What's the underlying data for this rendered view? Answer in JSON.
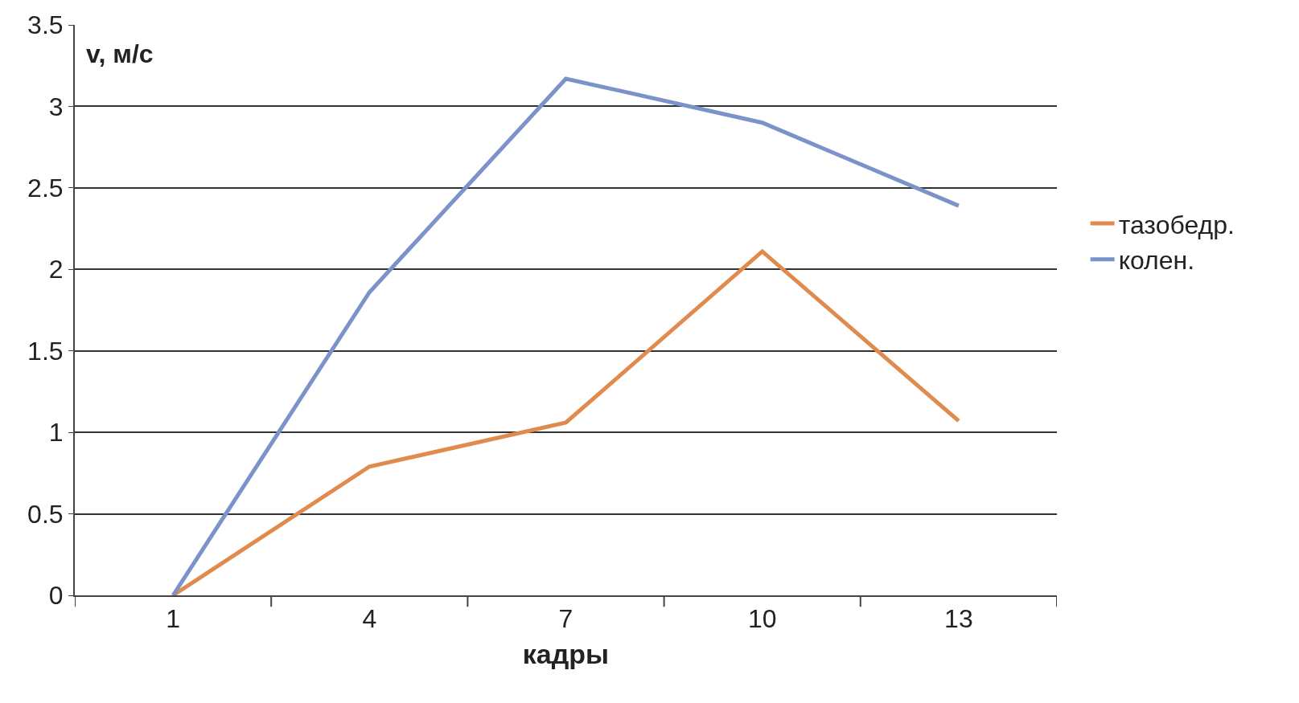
{
  "chart_data": {
    "type": "line",
    "categories": [
      "1",
      "4",
      "7",
      "10",
      "13"
    ],
    "series": [
      {
        "name": "тазобедр.",
        "color": "#e08a4e",
        "values": [
          0,
          0.79,
          1.06,
          2.11,
          1.07
        ]
      },
      {
        "name": "колен.",
        "color": "#7b93c9",
        "values": [
          0,
          1.86,
          3.17,
          2.9,
          2.39
        ]
      }
    ],
    "xlabel": "кадры",
    "ylabel": "v, м/с",
    "ylim": [
      0,
      3.5
    ],
    "yticks": [
      0,
      0.5,
      1,
      1.5,
      2,
      2.5,
      3,
      3.5
    ],
    "grid": "y",
    "legend": "right",
    "marker": "none",
    "line_style": "solid"
  }
}
